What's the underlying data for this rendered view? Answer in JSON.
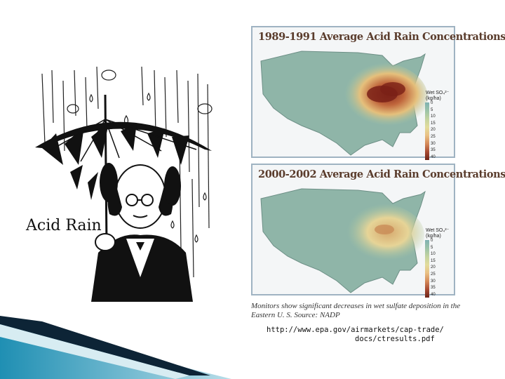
{
  "cartoon": {
    "caption": "Acid Rain",
    "icon": "man-with-umbrella-illustration"
  },
  "maps": [
    {
      "title": "1989-1991 Average Acid Rain Concentrations",
      "legend_title": "Wet SO₄²⁻ (kg/ha)",
      "legend_ticks": [
        "0",
        "5",
        "10",
        "15",
        "20",
        "25",
        "30",
        "35",
        "40"
      ]
    },
    {
      "title": "2000-2002 Average Acid Rain Concentrations",
      "legend_title": "Wet SO₄²⁻ (kg/ha)",
      "legend_ticks": [
        "0",
        "5",
        "10",
        "15",
        "20",
        "25",
        "30",
        "35",
        "40"
      ]
    }
  ],
  "source_note": "Monitors show significant decreases in wet sulfate deposition in the Eastern U. S. Source: NADP",
  "url": {
    "line1": "http://www.epa.gov/airmarkets/cap-trade/",
    "line2": "docs/ctresults.pdf"
  },
  "colors": {
    "panel_border": "#9fb3c2",
    "title_brown": "#5a3c2c",
    "map_low": "#7fb2b2",
    "map_high": "#6e2418",
    "deco_teal": "#2a9bbd"
  }
}
